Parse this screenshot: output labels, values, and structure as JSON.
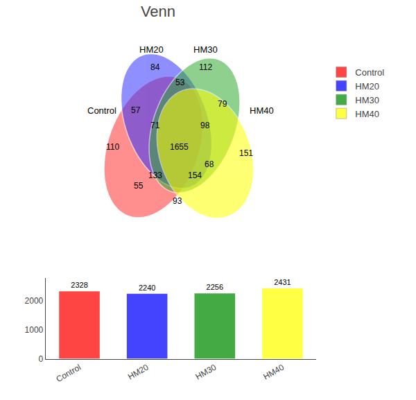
{
  "chart_data": [
    {
      "type": "venn",
      "title": "Venn",
      "sets": [
        {
          "name": "Control",
          "color": "#FF3333"
        },
        {
          "name": "HM20",
          "color": "#3333FF"
        },
        {
          "name": "HM30",
          "color": "#33AA33"
        },
        {
          "name": "HM40",
          "color": "#FFFF00"
        }
      ],
      "series": [
        {
          "name": "Control",
          "color": "#FF4444"
        },
        {
          "name": "HM20",
          "color": "#4444FF"
        },
        {
          "name": "HM30",
          "color": "#44AA44"
        },
        {
          "name": "HM40",
          "color": "#FFFF44"
        }
      ],
      "values": [
        110,
        84,
        112,
        151,
        57,
        53,
        79,
        71,
        98,
        55,
        1655,
        68,
        133,
        154,
        93
      ],
      "legend": "upper right"
    },
    {
      "type": "bar",
      "categories": [
        "Control",
        "HM20",
        "HM30",
        "HM40"
      ],
      "values": [
        2328,
        2240,
        2256,
        2431
      ],
      "colors": [
        "#FF4444",
        "#4444FF",
        "#44AA44",
        "#FFFF44"
      ],
      "ylim": [
        0,
        2795.65
      ],
      "yticks": [
        0,
        1000,
        2000
      ],
      "data_labels": true,
      "grid": false
    }
  ]
}
